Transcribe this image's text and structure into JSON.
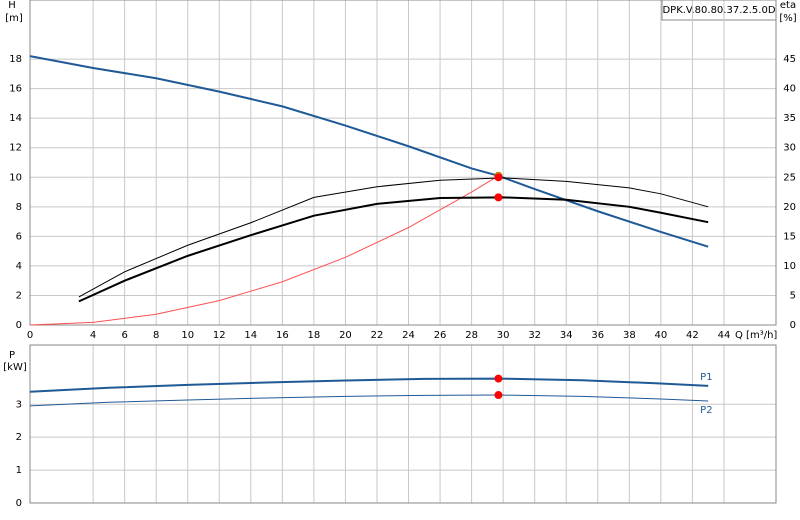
{
  "chart_data": [
    {
      "type": "line",
      "title": "DPK.V.80.80.37.2.5.0D",
      "x_label": "Q [m³/h]",
      "y_label": "H",
      "y_unit": "[m]",
      "y2_label": "eta",
      "y2_unit": "[%]",
      "xlim": [
        0,
        47.3
      ],
      "ylim": [
        0,
        22
      ],
      "y2lim": [
        0,
        55
      ],
      "xticks": [
        0,
        4,
        6,
        8,
        10,
        12,
        14,
        16,
        18,
        20,
        22,
        24,
        26,
        28,
        30,
        32,
        34,
        36,
        38,
        40,
        42,
        44
      ],
      "yticks": [
        0,
        2,
        4,
        6,
        8,
        10,
        12,
        14,
        16,
        18
      ],
      "y2ticks": [
        0,
        5,
        10,
        15,
        20,
        25,
        30,
        35,
        40,
        45
      ],
      "grid": true,
      "series": [
        {
          "color": "#1f5a96",
          "width": 2,
          "x": [
            0,
            4,
            8,
            12,
            16,
            20,
            24,
            28,
            29.7,
            32,
            36,
            40,
            43
          ],
          "values": [
            18.2,
            17.4,
            16.7,
            15.8,
            14.8,
            13.5,
            12.1,
            10.6,
            10.1,
            9.2,
            7.7,
            6.3,
            5.3
          ]
        },
        {
          "color": "#ff5050",
          "width": 1,
          "x": [
            0,
            4,
            8,
            12,
            16,
            20,
            24,
            28,
            29.7
          ],
          "values": [
            0,
            0.18,
            0.73,
            1.65,
            2.93,
            4.58,
            6.6,
            9.0,
            10.1
          ]
        },
        {
          "color": "#000000",
          "width": 1,
          "axis": "y2",
          "x": [
            3.1,
            6,
            10,
            14,
            18,
            22,
            26,
            30,
            34,
            38,
            40,
            43
          ],
          "values": [
            4.75,
            9,
            13.5,
            17.3,
            21.6,
            23.4,
            24.5,
            24.9,
            24.3,
            23.2,
            22.2,
            20
          ]
        },
        {
          "color": "#000000",
          "width": 2,
          "axis": "y2",
          "x": [
            3.1,
            6,
            10,
            14,
            18,
            22,
            26,
            30,
            34,
            38,
            40,
            43
          ],
          "values": [
            4.0,
            7.5,
            11.7,
            15.2,
            18.5,
            20.5,
            21.5,
            21.6,
            21.2,
            20,
            19,
            17.4
          ]
        },
        {
          "type": "scatter",
          "color": "#ffd700",
          "x": [
            29.7
          ],
          "values": [
            10.1
          ]
        },
        {
          "type": "scatter",
          "color": "#ff0000",
          "x": [
            29.7
          ],
          "values": [
            10.0
          ]
        },
        {
          "type": "scatter",
          "color": "#ff0000",
          "axis": "y2",
          "x": [
            29.7
          ],
          "values": [
            21.6
          ]
        }
      ]
    },
    {
      "type": "line",
      "y_label": "P",
      "y_unit": "[kW]",
      "xlim": [
        0,
        47.3
      ],
      "ylim": [
        0,
        4.8
      ],
      "yticks": [
        0,
        1,
        2,
        3
      ],
      "grid": true,
      "series": [
        {
          "name": "P1",
          "color": "#1f5a96",
          "width": 2,
          "x": [
            0,
            5,
            10,
            15,
            20,
            25,
            29.7,
            35,
            40,
            43
          ],
          "values": [
            3.38,
            3.5,
            3.59,
            3.66,
            3.72,
            3.77,
            3.78,
            3.73,
            3.63,
            3.56
          ]
        },
        {
          "name": "P2",
          "color": "#1f5a96",
          "width": 1,
          "x": [
            0,
            5,
            10,
            15,
            20,
            25,
            29.7,
            35,
            40,
            43
          ],
          "values": [
            2.95,
            3.06,
            3.13,
            3.19,
            3.24,
            3.27,
            3.28,
            3.24,
            3.16,
            3.1
          ]
        },
        {
          "type": "scatter",
          "color": "#ff0000",
          "x": [
            29.7
          ],
          "values": [
            3.78
          ]
        },
        {
          "type": "scatter",
          "color": "#ff0000",
          "x": [
            29.7
          ],
          "values": [
            3.28
          ]
        }
      ]
    }
  ]
}
